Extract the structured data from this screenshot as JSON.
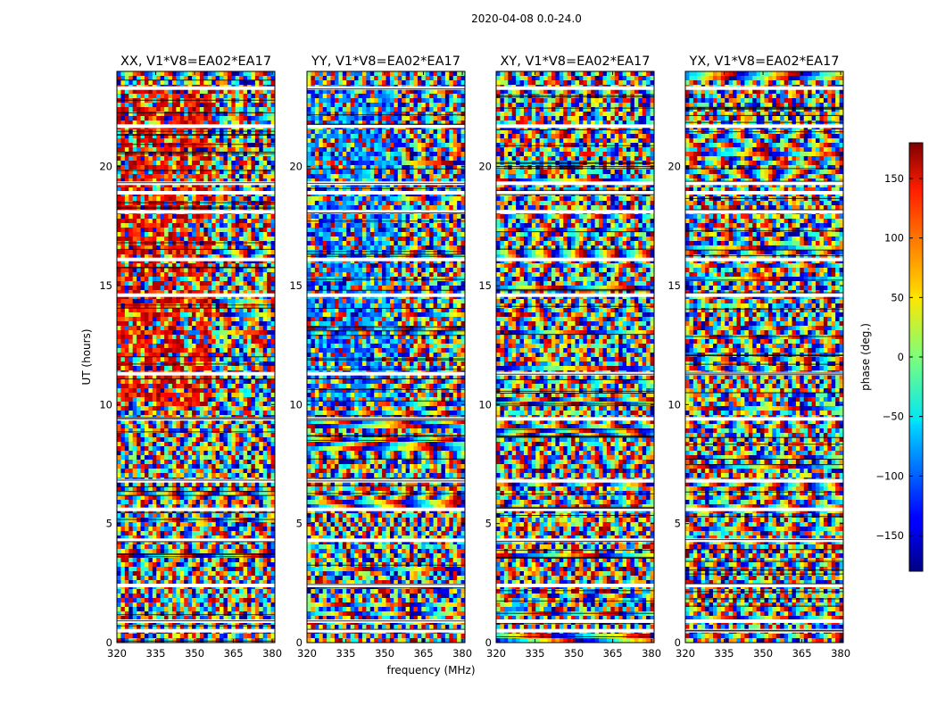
{
  "chart_data": {
    "type": "heatmap",
    "suptitle": "2020-04-08 0.0-24.0",
    "xlabel": "frequency (MHz)",
    "ylabel": "UT (hours)",
    "xlim": [
      320,
      381
    ],
    "ylim": [
      0,
      24
    ],
    "xticks": [
      "320",
      "335",
      "350",
      "365",
      "380"
    ],
    "xtick_values": [
      320,
      335,
      350,
      365,
      380
    ],
    "yticks": [
      "0",
      "5",
      "10",
      "15",
      "20"
    ],
    "ytick_values": [
      0,
      5,
      10,
      15,
      20
    ],
    "colorbar": {
      "label": "phase (deg.)",
      "range": [
        -180,
        180
      ],
      "ticks": [
        "150",
        "100",
        "50",
        "0",
        "−50",
        "−100",
        "−150"
      ],
      "tick_values": [
        150,
        100,
        50,
        0,
        -50,
        -100,
        -150
      ],
      "colormap": "jet"
    },
    "panels": [
      {
        "title": "XX, V1*V8=EA02*EA17",
        "polarization": "XX",
        "seed": 11
      },
      {
        "title": "YY, V1*V8=EA02*EA17",
        "polarization": "YY",
        "seed": 23
      },
      {
        "title": "XY, V1*V8=EA02*EA17",
        "polarization": "XY",
        "seed": 37
      },
      {
        "title": "YX, V1*V8=EA02*EA17",
        "polarization": "YX",
        "seed": 53
      }
    ],
    "flagged_ut_hours": [
      0.5,
      0.9,
      2.4,
      4.3,
      5.6,
      6.8,
      9.4,
      11.3,
      14.6,
      16.1,
      18.1,
      18.9,
      19.3,
      21.7,
      23.3
    ]
  },
  "colors": {
    "background": "#ffffff",
    "axes": "#000000"
  }
}
